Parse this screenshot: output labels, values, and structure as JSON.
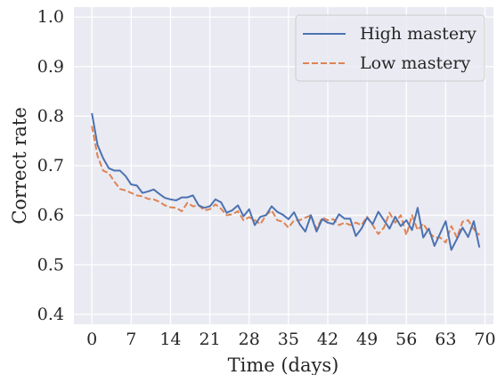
{
  "chart_data": {
    "type": "line",
    "xlabel": "Time (days)",
    "ylabel": "Correct rate",
    "xlim": [
      -3.2,
      71.5
    ],
    "ylim": [
      0.38,
      1.02
    ],
    "xticks": [
      0,
      7,
      14,
      21,
      28,
      35,
      42,
      49,
      56,
      63,
      70
    ],
    "yticks": [
      0.4,
      0.5,
      0.6,
      0.7,
      0.8,
      0.9,
      1.0
    ],
    "ytick_labels": [
      "0.4",
      "0.5",
      "0.6",
      "0.7",
      "0.8",
      "0.9",
      "1.0"
    ],
    "grid": true,
    "legend_position": "top-right",
    "x": [
      0,
      1,
      2,
      3,
      4,
      5,
      6,
      7,
      8,
      9,
      10,
      11,
      12,
      13,
      14,
      15,
      16,
      17,
      18,
      19,
      20,
      21,
      22,
      23,
      24,
      25,
      26,
      27,
      28,
      29,
      30,
      31,
      32,
      33,
      34,
      35,
      36,
      37,
      38,
      39,
      40,
      41,
      42,
      43,
      44,
      45,
      46,
      47,
      48,
      49,
      50,
      51,
      52,
      53,
      54,
      55,
      56,
      57,
      58,
      59,
      60,
      61,
      62,
      63,
      64,
      65,
      66,
      67,
      68,
      69
    ],
    "series": [
      {
        "name": "High mastery",
        "color": "#4c72b0",
        "dash": "solid",
        "values": [
          0.806,
          0.742,
          0.715,
          0.695,
          0.69,
          0.69,
          0.679,
          0.662,
          0.66,
          0.645,
          0.648,
          0.652,
          0.643,
          0.635,
          0.632,
          0.63,
          0.636,
          0.636,
          0.64,
          0.62,
          0.615,
          0.618,
          0.632,
          0.626,
          0.605,
          0.61,
          0.62,
          0.598,
          0.612,
          0.58,
          0.597,
          0.6,
          0.618,
          0.607,
          0.601,
          0.592,
          0.606,
          0.582,
          0.567,
          0.6,
          0.567,
          0.592,
          0.585,
          0.582,
          0.602,
          0.593,
          0.593,
          0.558,
          0.573,
          0.595,
          0.582,
          0.607,
          0.59,
          0.573,
          0.597,
          0.578,
          0.59,
          0.57,
          0.615,
          0.555,
          0.573,
          0.538,
          0.563,
          0.588,
          0.53,
          0.552,
          0.575,
          0.556,
          0.588,
          0.535
        ]
      },
      {
        "name": "Low mastery",
        "color": "#dd8452",
        "dash": "dashed",
        "values": [
          0.78,
          0.72,
          0.69,
          0.685,
          0.668,
          0.653,
          0.65,
          0.645,
          0.64,
          0.638,
          0.633,
          0.632,
          0.627,
          0.62,
          0.616,
          0.615,
          0.608,
          0.625,
          0.618,
          0.62,
          0.61,
          0.612,
          0.622,
          0.613,
          0.6,
          0.602,
          0.608,
          0.59,
          0.596,
          0.59,
          0.582,
          0.6,
          0.61,
          0.59,
          0.587,
          0.575,
          0.59,
          0.59,
          0.595,
          0.6,
          0.572,
          0.595,
          0.59,
          0.592,
          0.58,
          0.585,
          0.58,
          0.585,
          0.58,
          0.597,
          0.58,
          0.562,
          0.575,
          0.605,
          0.585,
          0.6,
          0.56,
          0.6,
          0.57,
          0.583,
          0.565,
          0.555,
          0.555,
          0.545,
          0.578,
          0.555,
          0.587,
          0.59,
          0.572,
          0.56
        ]
      }
    ]
  }
}
